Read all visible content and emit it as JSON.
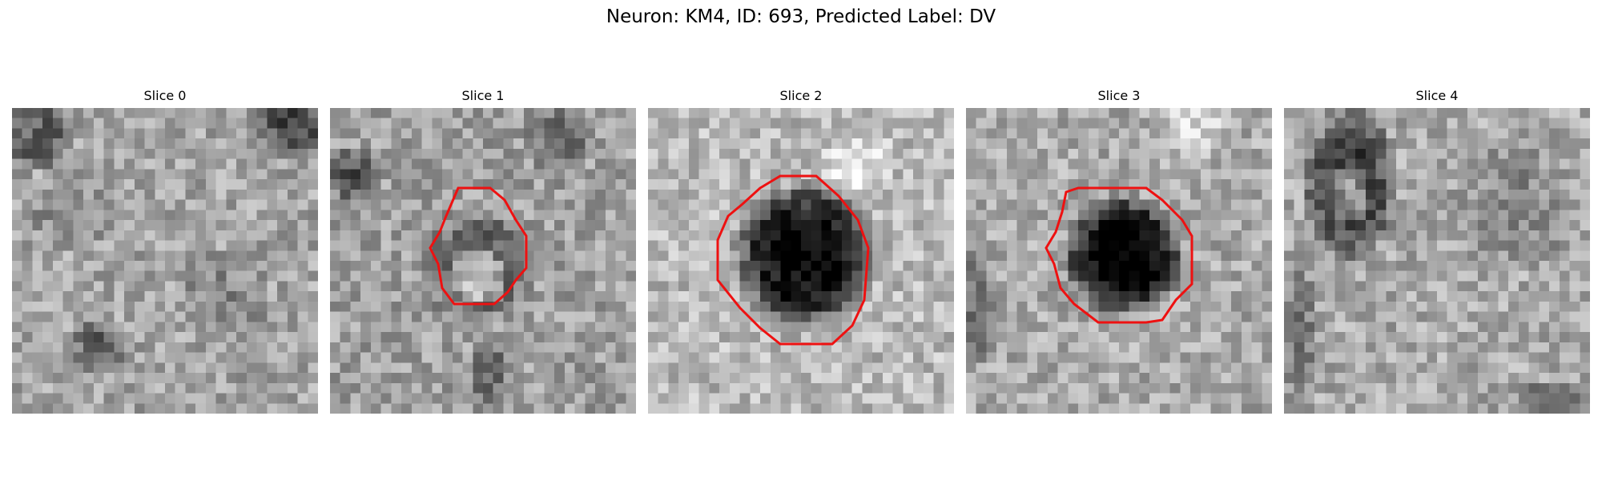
{
  "figure": {
    "title": "Neuron: KM4, ID: 693, Predicted Label: DV",
    "contour_color": "#ee1111"
  },
  "slices": [
    {
      "title": "Slice 0",
      "has_contour": false
    },
    {
      "title": "Slice 1",
      "has_contour": true
    },
    {
      "title": "Slice 2",
      "has_contour": true
    },
    {
      "title": "Slice 3",
      "has_contour": true
    },
    {
      "title": "Slice 4",
      "has_contour": false
    }
  ]
}
